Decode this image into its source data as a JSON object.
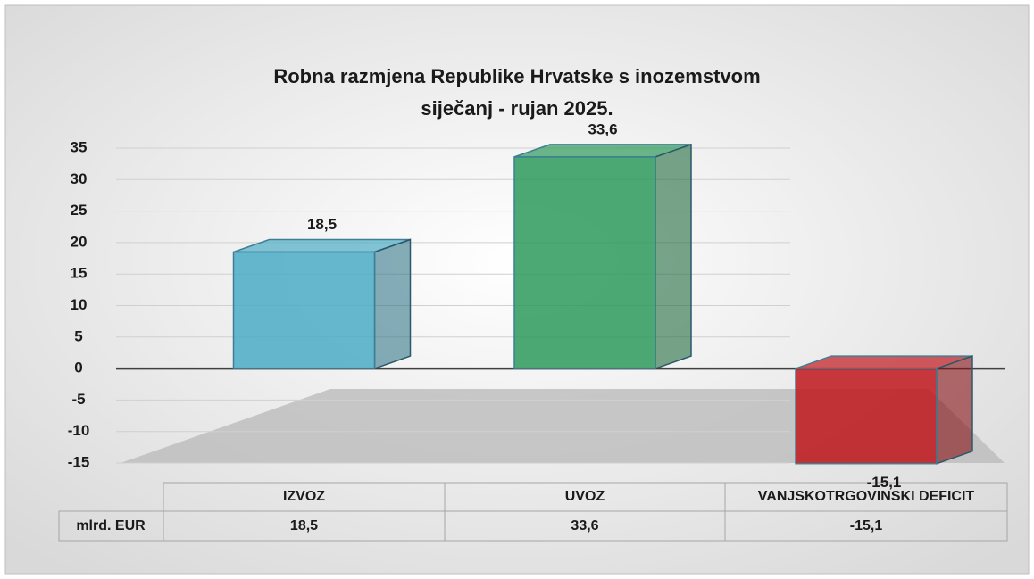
{
  "chart_data": {
    "type": "bar",
    "title": "Robna razmjena Republike Hrvatske s inozemstvom",
    "subtitle": "siječanj - rujan 2025.",
    "categories": [
      "IZVOZ",
      "UVOZ",
      "VANJSKOTRGOVINSKI DEFICIT"
    ],
    "series": [
      {
        "name": "mlrd. EUR",
        "colors": [
          "#4bacc6",
          "#2e9a5a",
          "#c0181d"
        ],
        "values": [
          18.5,
          33.6,
          -15.1
        ],
        "value_labels": [
          "18,5",
          "33,6",
          "-15,1"
        ]
      }
    ],
    "ylim": [
      -15,
      35
    ],
    "yticks": [
      -15,
      -10,
      -5,
      0,
      5,
      10,
      15,
      20,
      25,
      30,
      35
    ],
    "grid": true,
    "data_table": true
  }
}
